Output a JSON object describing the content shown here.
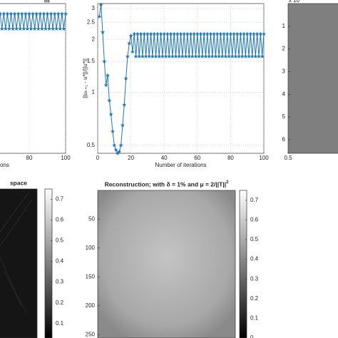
{
  "chart_data": [
    {
      "type": "line",
      "title": "m",
      "x_label": "ons",
      "xlim": [
        0,
        100
      ],
      "xticks": [
        80,
        100
      ],
      "ylim": [
        0.45,
        3.2
      ],
      "log_y": true,
      "grid": true,
      "x": [
        64,
        65,
        66,
        67,
        68,
        69,
        70,
        71,
        72,
        73,
        74,
        75,
        76,
        77,
        78,
        79,
        80,
        81,
        82,
        83,
        84,
        85,
        86,
        87,
        88,
        89,
        90,
        91,
        92,
        93,
        94,
        95,
        96,
        97,
        98,
        99,
        100
      ],
      "series": [
        {
          "color": "#1f77b4",
          "values": [
            2.8,
            2.3,
            2.8,
            2.3,
            2.8,
            2.3,
            2.8,
            2.3,
            2.8,
            2.3,
            2.8,
            2.3,
            2.8,
            2.3,
            2.8,
            2.3,
            2.8,
            2.3,
            2.8,
            2.3,
            2.8,
            2.3,
            2.8,
            2.3,
            2.8,
            2.3,
            2.8,
            2.3,
            2.8,
            2.3,
            2.8,
            2.3,
            2.8,
            2.3,
            2.8,
            2.3,
            2.8
          ]
        }
      ]
    },
    {
      "type": "line",
      "x_label": "Number of iterations",
      "y_label": "||uₖ₊₁ - u*||/||u*||",
      "xlim": [
        0,
        100
      ],
      "xticks": [
        0,
        20,
        40,
        60,
        80,
        100
      ],
      "ylim": [
        0.45,
        3.2
      ],
      "log_y": true,
      "yticks": [
        0.5,
        1,
        1.5,
        2,
        2.5,
        3
      ],
      "grid": true,
      "x": [
        1,
        2,
        3,
        4,
        5,
        6,
        7,
        8,
        9,
        10,
        11,
        12,
        13,
        14,
        15,
        16,
        17,
        18,
        19,
        20,
        21,
        22,
        23,
        24,
        25,
        26,
        27,
        28,
        29,
        30,
        31,
        32,
        33,
        34,
        35,
        36,
        37,
        38,
        39,
        40,
        41,
        42,
        43,
        44,
        45,
        46,
        47,
        48,
        49,
        50,
        51,
        52,
        53,
        54,
        55,
        56,
        57,
        58,
        59,
        60,
        61,
        62,
        63,
        64,
        65,
        66,
        67,
        68,
        69,
        70,
        71,
        72,
        73,
        74,
        75,
        76,
        77,
        78,
        79,
        80,
        81,
        82,
        83,
        84,
        85,
        86,
        87,
        88,
        89,
        90,
        91,
        92,
        93,
        94,
        95,
        96,
        97,
        98,
        99,
        100
      ],
      "series": [
        {
          "color": "#1f77b4",
          "values": [
            2.7,
            3.15,
            2.2,
            1.5,
            1.1,
            1.25,
            0.9,
            0.75,
            0.6,
            0.5,
            0.47,
            0.45,
            0.46,
            0.5,
            0.65,
            0.85,
            1.2,
            1.6,
            1.9,
            2.1,
            1.7,
            2.15,
            1.6,
            2.15,
            1.6,
            2.15,
            1.6,
            2.15,
            1.6,
            2.15,
            1.6,
            2.15,
            1.6,
            2.15,
            1.6,
            2.15,
            1.6,
            2.15,
            1.6,
            2.15,
            1.6,
            2.15,
            1.6,
            2.15,
            1.6,
            2.15,
            1.6,
            2.15,
            1.6,
            2.15,
            1.6,
            2.15,
            1.6,
            2.15,
            1.6,
            2.15,
            1.6,
            2.15,
            1.6,
            2.15,
            1.6,
            2.15,
            1.6,
            2.15,
            1.6,
            2.15,
            1.6,
            2.15,
            1.6,
            2.15,
            1.6,
            2.15,
            1.6,
            2.15,
            1.6,
            2.15,
            1.6,
            2.15,
            1.6,
            2.15,
            1.6,
            2.15,
            1.6,
            2.15,
            1.6,
            2.15,
            1.6,
            2.15,
            1.6,
            2.15,
            1.6,
            2.15,
            1.6,
            2.15,
            1.6,
            2.15,
            1.6,
            2.15,
            1.6,
            2.15
          ]
        }
      ]
    },
    {
      "type": "image",
      "corner_label": "x 10",
      "ylim": [
        0,
        6.6
      ],
      "yticks": [
        1,
        2,
        3,
        4,
        5,
        6
      ],
      "xlim": [
        0.5,
        1.5
      ],
      "xticks": [
        0.5
      ],
      "color": "#7f7f7f"
    },
    {
      "type": "image",
      "title": "space",
      "clim": [
        0.03,
        0.75
      ],
      "cticks": [
        0.1,
        0.2,
        0.3,
        0.4,
        0.5,
        0.6,
        0.7
      ],
      "color": "#151515"
    },
    {
      "type": "image",
      "title": "Reconstruction; with δ = 1% and μ = 2/||T||",
      "title_sup": "2",
      "ylim": [
        0,
        256
      ],
      "yticks": [
        50,
        100,
        150,
        200,
        250
      ],
      "clim": [
        0,
        0.75
      ],
      "cticks": [
        0,
        0.1,
        0.2,
        0.3,
        0.4,
        0.5,
        0.6,
        0.7
      ],
      "color": "#9a9a9a"
    }
  ]
}
